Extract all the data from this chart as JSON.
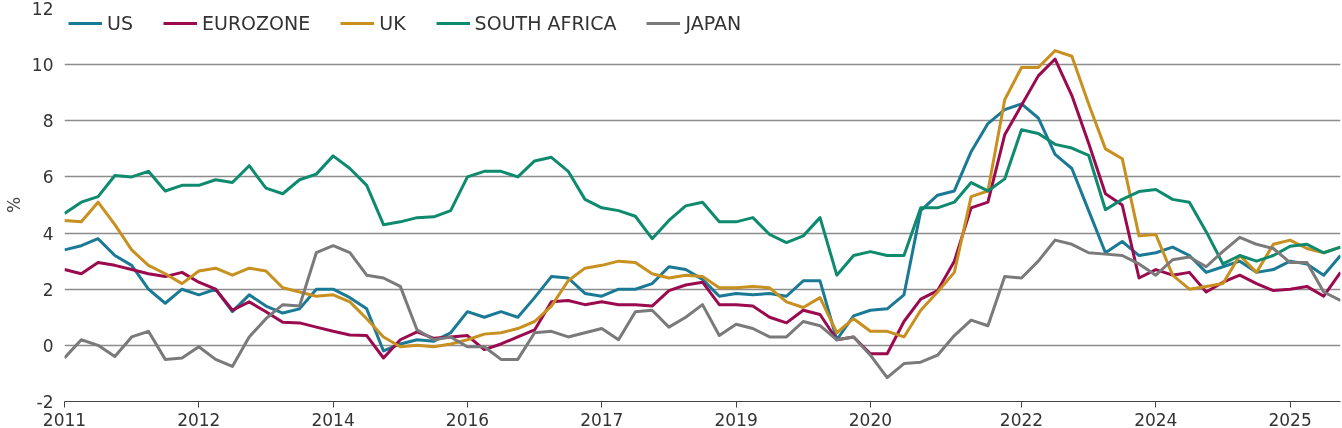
{
  "chart_data": {
    "type": "line",
    "ylabel": "%",
    "categories": [
      "2011",
      null,
      null,
      null,
      null,
      null,
      null,
      null,
      "2012",
      null,
      null,
      null,
      null,
      null,
      null,
      null,
      "2014",
      null,
      null,
      null,
      null,
      null,
      null,
      null,
      "2016",
      null,
      null,
      null,
      null,
      null,
      null,
      null,
      "2017",
      null,
      null,
      null,
      null,
      null,
      null,
      null,
      "2019",
      null,
      null,
      null,
      null,
      null,
      null,
      null,
      "2020",
      null,
      null,
      null,
      null,
      null,
      null,
      null,
      null,
      "2022",
      null,
      null,
      null,
      null,
      null,
      null,
      null,
      "2024",
      null,
      null,
      null,
      null,
      null,
      null,
      null,
      "2025",
      null,
      null,
      null
    ],
    "series": [
      {
        "name": "US",
        "color": "#1a7a96",
        "values": [
          3.4,
          3.55,
          3.8,
          3.2,
          2.85,
          2.0,
          1.5,
          2.0,
          1.8,
          2.0,
          1.2,
          1.8,
          1.4,
          1.15,
          1.3,
          2.0,
          2.0,
          1.7,
          1.3,
          -0.2,
          0.05,
          0.2,
          0.15,
          0.45,
          1.2,
          1.0,
          1.2,
          1.0,
          1.7,
          2.45,
          2.4,
          1.85,
          1.75,
          2.0,
          2.0,
          2.2,
          2.8,
          2.7,
          2.35,
          1.75,
          1.85,
          1.8,
          1.85,
          1.75,
          2.3,
          2.3,
          0.2,
          1.05,
          1.25,
          1.3,
          1.8,
          4.8,
          5.35,
          5.5,
          6.9,
          7.9,
          8.4,
          8.6,
          8.1,
          6.8,
          6.3,
          4.8,
          3.3,
          3.7,
          3.2,
          3.3,
          3.5,
          3.2,
          2.6,
          2.8,
          3.0,
          2.6,
          2.7,
          3.0,
          2.9,
          2.5,
          3.2
        ]
      },
      {
        "name": "EUROZONE",
        "color": "#9b0a4e",
        "values": [
          2.7,
          2.55,
          2.95,
          2.85,
          2.7,
          2.55,
          2.45,
          2.6,
          2.25,
          2.0,
          1.25,
          1.55,
          1.2,
          0.82,
          0.8,
          0.65,
          0.5,
          0.37,
          0.35,
          -0.45,
          0.2,
          0.48,
          0.25,
          0.3,
          0.35,
          -0.15,
          0.05,
          0.3,
          0.55,
          1.55,
          1.6,
          1.45,
          1.55,
          1.45,
          1.45,
          1.4,
          1.95,
          2.15,
          2.25,
          1.45,
          1.45,
          1.4,
          1.0,
          0.8,
          1.25,
          1.1,
          0.2,
          0.3,
          -0.3,
          -0.3,
          0.85,
          1.65,
          1.95,
          3.0,
          4.9,
          5.1,
          7.5,
          8.55,
          9.6,
          10.2,
          8.9,
          7.2,
          5.4,
          5.0,
          2.4,
          2.7,
          2.5,
          2.6,
          1.9,
          2.25,
          2.5,
          2.2,
          1.95,
          2.0,
          2.1,
          1.75,
          2.6
        ]
      },
      {
        "name": "UK",
        "color": "#c8901f",
        "values": [
          4.45,
          4.4,
          5.1,
          4.3,
          3.4,
          2.85,
          2.55,
          2.2,
          2.65,
          2.75,
          2.5,
          2.75,
          2.65,
          2.05,
          1.9,
          1.75,
          1.8,
          1.55,
          0.95,
          0.3,
          -0.05,
          0.0,
          -0.05,
          0.05,
          0.2,
          0.4,
          0.45,
          0.6,
          0.85,
          1.4,
          2.3,
          2.75,
          2.85,
          3.0,
          2.95,
          2.55,
          2.4,
          2.5,
          2.45,
          2.05,
          2.05,
          2.1,
          2.05,
          1.55,
          1.35,
          1.7,
          0.45,
          0.95,
          0.5,
          0.5,
          0.3,
          1.25,
          1.9,
          2.6,
          5.3,
          5.5,
          8.75,
          9.9,
          9.9,
          10.5,
          10.3,
          8.6,
          7.0,
          6.65,
          3.9,
          3.95,
          2.5,
          2.0,
          2.1,
          2.2,
          3.2,
          2.6,
          3.6,
          3.75,
          3.45,
          3.3,
          3.5
        ]
      },
      {
        "name": "SOUTH AFRICA",
        "color": "#0e8a6e",
        "values": [
          4.7,
          5.1,
          5.3,
          6.05,
          6.0,
          6.2,
          5.5,
          5.7,
          5.7,
          5.9,
          5.8,
          6.4,
          5.6,
          5.4,
          5.9,
          6.1,
          6.75,
          6.3,
          5.7,
          4.3,
          4.4,
          4.55,
          4.58,
          4.8,
          6.0,
          6.2,
          6.2,
          6.0,
          6.57,
          6.7,
          6.2,
          5.2,
          4.9,
          4.8,
          4.6,
          3.8,
          4.45,
          4.97,
          5.1,
          4.4,
          4.4,
          4.55,
          3.95,
          3.66,
          3.9,
          4.55,
          2.5,
          3.2,
          3.34,
          3.2,
          3.2,
          4.9,
          4.9,
          5.1,
          5.8,
          5.5,
          5.93,
          7.68,
          7.55,
          7.16,
          7.03,
          6.77,
          4.83,
          5.2,
          5.48,
          5.55,
          5.2,
          5.1,
          4.05,
          2.9,
          3.2,
          3.0,
          3.2,
          3.53,
          3.6,
          3.3,
          3.5
        ]
      },
      {
        "name": "JAPAN",
        "color": "#7a7a7a",
        "values": [
          -0.45,
          0.2,
          0.0,
          -0.4,
          0.3,
          0.5,
          -0.5,
          -0.45,
          -0.05,
          -0.5,
          -0.75,
          0.3,
          0.95,
          1.45,
          1.4,
          3.3,
          3.55,
          3.3,
          2.5,
          2.4,
          2.1,
          0.55,
          0.2,
          0.3,
          -0.05,
          -0.05,
          -0.5,
          -0.5,
          0.45,
          0.5,
          0.3,
          0.45,
          0.6,
          0.2,
          1.2,
          1.25,
          0.65,
          1.0,
          1.45,
          0.35,
          0.75,
          0.6,
          0.3,
          0.3,
          0.85,
          0.7,
          0.2,
          0.3,
          -0.35,
          -1.15,
          -0.65,
          -0.6,
          -0.35,
          0.35,
          0.9,
          0.7,
          2.45,
          2.4,
          3.0,
          3.75,
          3.6,
          3.3,
          3.25,
          3.2,
          2.9,
          2.5,
          3.05,
          3.15,
          2.8,
          3.35,
          3.85,
          3.6,
          3.45,
          2.95,
          2.95,
          1.9,
          1.6
        ]
      }
    ],
    "ylim": [
      -2,
      12
    ],
    "yticks": [
      -2,
      0,
      2,
      4,
      6,
      8,
      10,
      12
    ],
    "grid": "y",
    "legend": "top left",
    "line_style": "solid",
    "marker": "none"
  }
}
